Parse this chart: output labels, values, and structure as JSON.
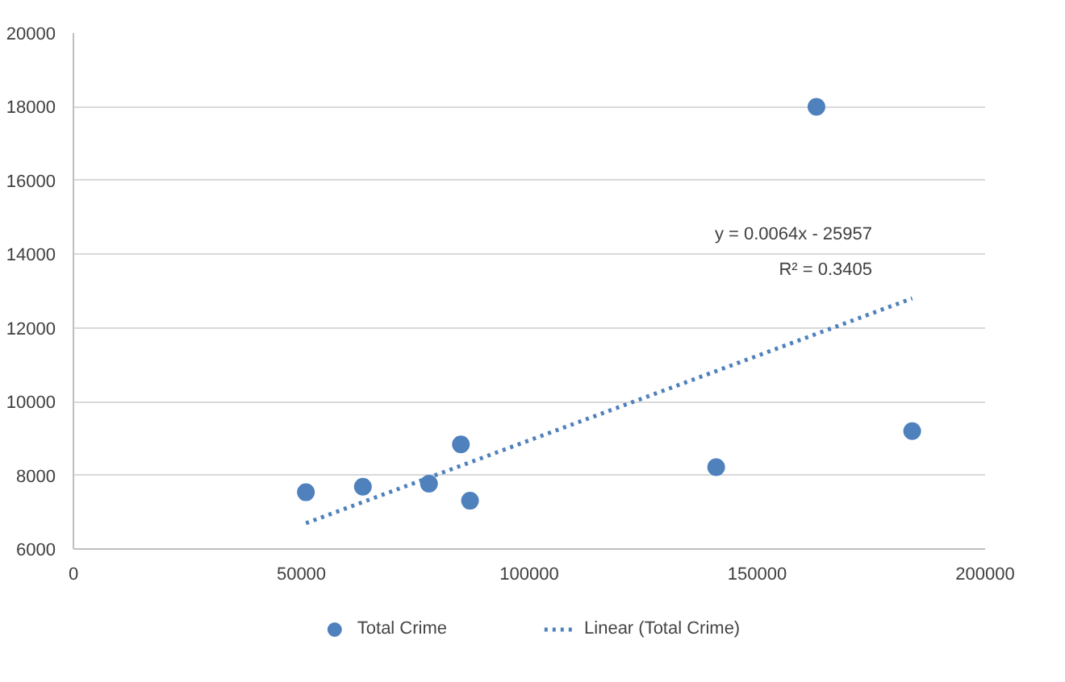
{
  "chart_data": {
    "type": "scatter",
    "xlim": [
      0,
      200000
    ],
    "xticks": [
      0,
      50000,
      100000,
      150000,
      200000
    ],
    "ylim": [
      6000,
      20000
    ],
    "yticks": [
      6000,
      8000,
      10000,
      12000,
      14000,
      16000,
      18000,
      20000
    ],
    "grid": "y",
    "legend": "bottom",
    "series": [
      {
        "name": "Total Crime",
        "marker": "circle",
        "color": "#4f81bd",
        "x": [
          51000,
          63500,
          78000,
          85000,
          87000,
          141000,
          163000,
          184000
        ],
        "values": [
          7540,
          7690,
          7770,
          8840,
          7310,
          8220,
          18000,
          9200
        ]
      },
      {
        "name": "Linear (Total Crime)",
        "type": "line",
        "line_style": "dotted",
        "color": "#4f81bd",
        "x": [
          51000,
          184000
        ],
        "values": [
          6700,
          12800
        ]
      }
    ],
    "annotations": [
      "y = 0.0064x - 25957",
      "R² = 0.3405"
    ]
  }
}
